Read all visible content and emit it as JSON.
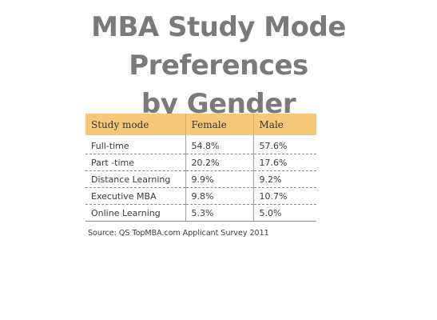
{
  "slide": {
    "title_line1": "MBA Study Mode Preferences",
    "title_line2": "by Gender",
    "source": "Source:  QS TopMBA.com Applicant Survey 2011"
  },
  "table": {
    "headers": [
      "Study mode",
      "Female",
      "Male"
    ],
    "rows": [
      [
        "Full-time",
        "54.8%",
        "57.6%"
      ],
      [
        "Part -time",
        "20.2%",
        "17.6%"
      ],
      [
        "Distance Learning",
        "9.9%",
        "9.2%"
      ],
      [
        "Executive MBA",
        "9.8%",
        "10.7%"
      ],
      [
        "Online Learning",
        "5.3%",
        "5.0%"
      ]
    ]
  },
  "colors": {
    "title": "#7a7a7a",
    "header_background": "#f6c87a"
  }
}
